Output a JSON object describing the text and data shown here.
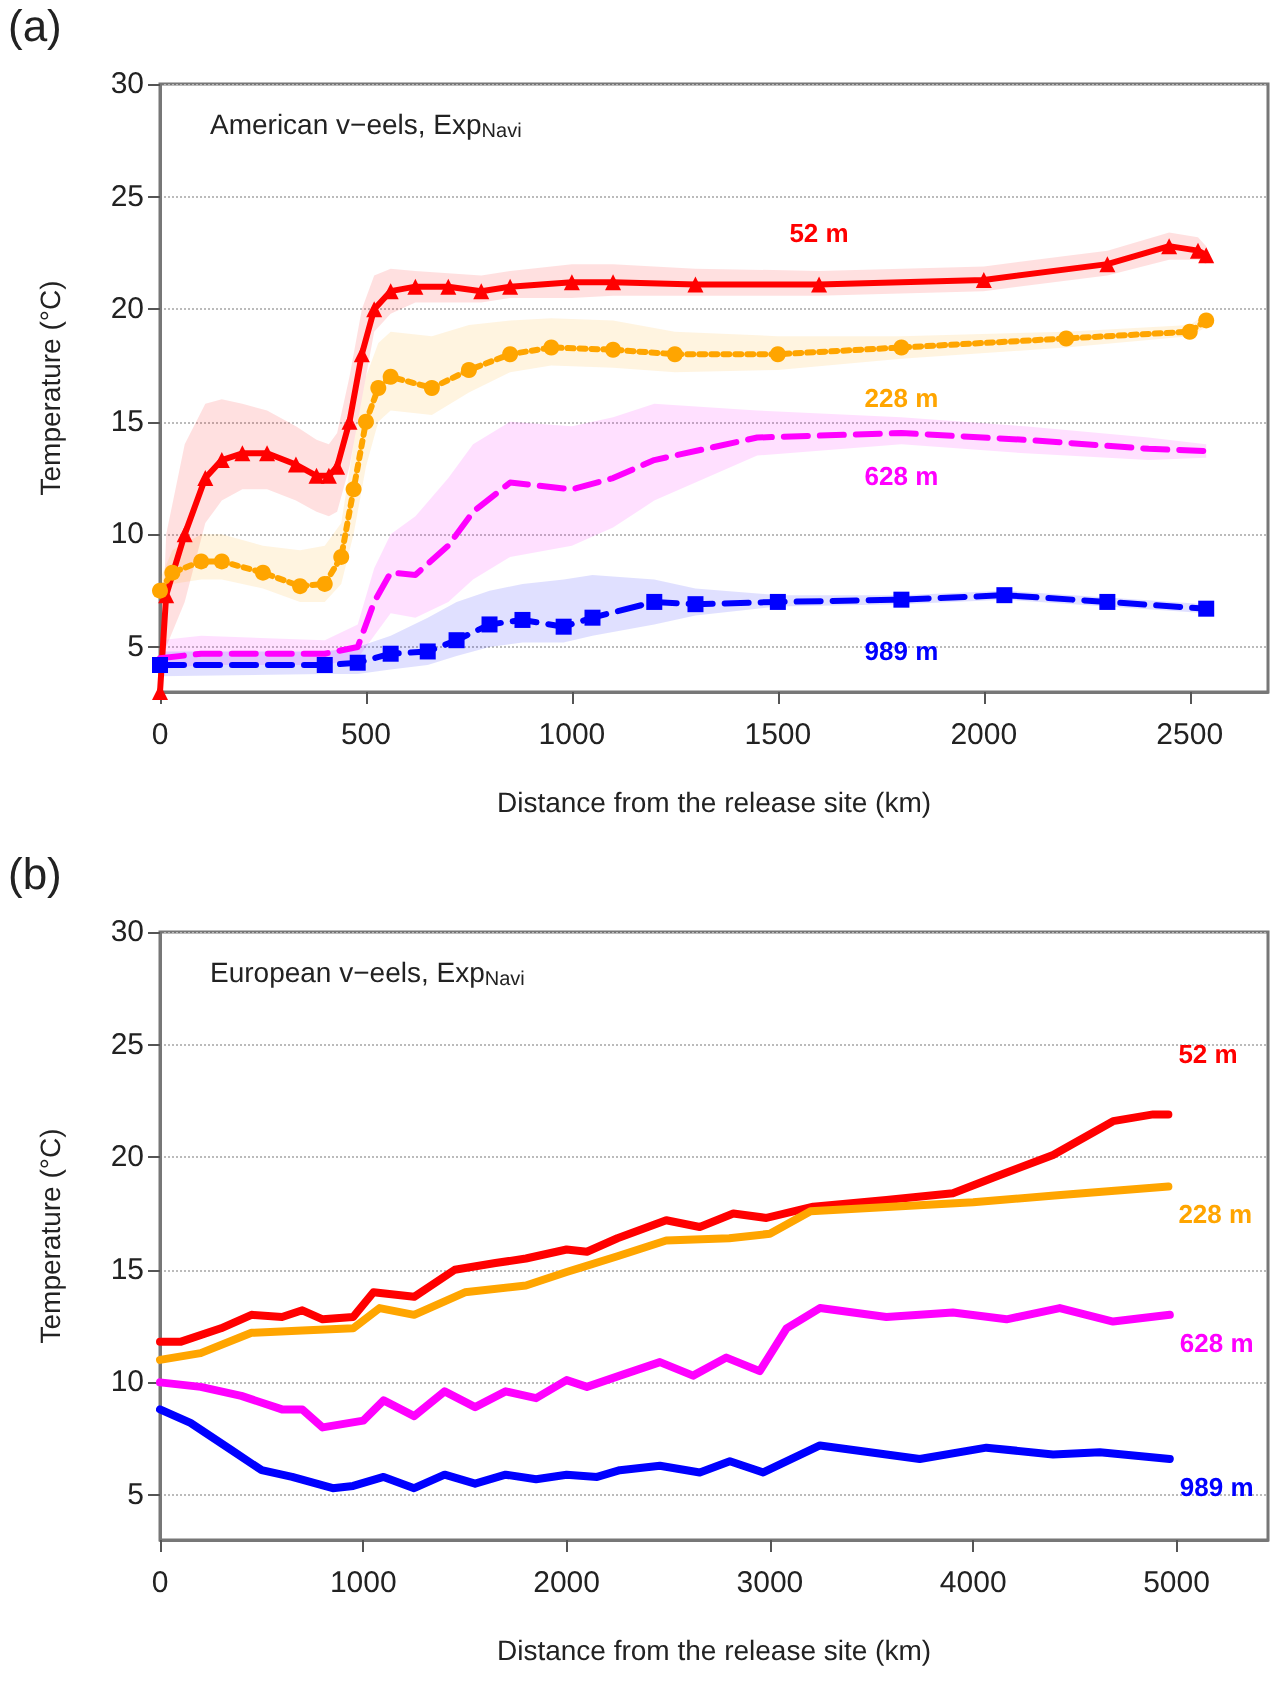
{
  "chart_data": [
    {
      "type": "line",
      "title": "American v−eels, Exp$_{Navi}$",
      "xlabel": "Distance from the release site (km)",
      "ylabel": "Temperature (°C)",
      "annotations": [
        "(a)"
      ],
      "xlim": [
        0,
        2690
      ],
      "xticks": [
        0,
        500,
        1000,
        1500,
        2000,
        2500
      ],
      "ylim": [
        3,
        30
      ],
      "yticks": [
        5,
        10,
        15,
        20,
        25,
        30
      ],
      "grid": "y",
      "legend": false,
      "series": [
        {
          "name": "52 m",
          "color": "#ff0000",
          "marker": "triangle",
          "line_style": "solid",
          "x": [
            0,
            15,
            60,
            110,
            150,
            200,
            260,
            330,
            380,
            410,
            430,
            460,
            490,
            520,
            560,
            620,
            700,
            780,
            850,
            1000,
            1100,
            1300,
            1600,
            2000,
            2300,
            2450,
            2520,
            2540
          ],
          "values": [
            3,
            7.3,
            10,
            12.5,
            13.3,
            13.6,
            13.6,
            13.1,
            12.6,
            12.6,
            13,
            15,
            18,
            20,
            20.8,
            21,
            21,
            20.8,
            21,
            21.2,
            21.2,
            21.1,
            21.1,
            21.3,
            22,
            22.8,
            22.6,
            22.4
          ],
          "lower": [
            3,
            5,
            7,
            10.5,
            11.5,
            12,
            12,
            11.5,
            11,
            10.8,
            11,
            13,
            16,
            19,
            19.8,
            20.3,
            20.3,
            20.3,
            20.5,
            20.5,
            20.6,
            20.6,
            20.6,
            20.8,
            21.5,
            22.2,
            22.2,
            22
          ],
          "upper": [
            3,
            10,
            14,
            15.8,
            16,
            15.8,
            15.5,
            14.8,
            14.2,
            14,
            14.5,
            17,
            20,
            21.5,
            21.8,
            21.7,
            21.6,
            21.5,
            21.7,
            22,
            22,
            21.8,
            21.7,
            21.9,
            22.6,
            23.4,
            23.2,
            22.8
          ]
        },
        {
          "name": "228 m",
          "color": "#ffa500",
          "marker": "circle",
          "line_style": "dotted",
          "x": [
            0,
            30,
            100,
            150,
            250,
            340,
            400,
            440,
            470,
            500,
            530,
            560,
            660,
            750,
            850,
            950,
            1100,
            1250,
            1500,
            1800,
            2200,
            2500,
            2540
          ],
          "values": [
            7.5,
            8.3,
            8.8,
            8.8,
            8.3,
            7.7,
            7.8,
            9,
            12,
            15,
            16.5,
            17,
            16.5,
            17.3,
            18,
            18.3,
            18.2,
            18,
            18,
            18.3,
            18.7,
            19,
            19.5
          ],
          "lower": [
            7,
            7.8,
            8,
            8,
            7.6,
            7,
            7,
            7.8,
            10,
            13,
            15,
            15.5,
            15.3,
            16.3,
            17.2,
            17.5,
            17.4,
            17.2,
            17.3,
            17.8,
            18.3,
            18.8,
            19.2
          ],
          "upper": [
            8,
            9.3,
            10,
            10,
            9.5,
            9.3,
            9.5,
            10.5,
            14,
            17,
            18.5,
            19,
            18.8,
            19.3,
            19.5,
            19.6,
            19.5,
            19,
            18.8,
            18.8,
            19,
            19.3,
            19.8
          ]
        },
        {
          "name": "628 m",
          "color": "#ff00ff",
          "marker": "none",
          "line_style": "dashed",
          "x": [
            0,
            100,
            400,
            480,
            520,
            560,
            620,
            700,
            760,
            850,
            1000,
            1100,
            1200,
            1450,
            1800,
            2100,
            2400,
            2540
          ],
          "values": [
            4.5,
            4.7,
            4.7,
            5,
            7,
            8.3,
            8.2,
            9.5,
            11,
            12.3,
            12,
            12.5,
            13.3,
            14.3,
            14.5,
            14.2,
            13.8,
            13.7
          ],
          "lower": [
            4,
            4.2,
            4.2,
            4.5,
            5.5,
            6.5,
            6.3,
            7,
            8,
            9,
            9.5,
            10.3,
            11.5,
            13.5,
            14,
            13.6,
            13.3,
            13.4
          ],
          "upper": [
            5.3,
            5.5,
            5.3,
            6,
            8.5,
            10,
            10.8,
            12.5,
            14,
            15,
            14.8,
            15.2,
            15.8,
            15.5,
            15.2,
            14.8,
            14.3,
            14
          ]
        },
        {
          "name": "989 m",
          "color": "#0000ff",
          "marker": "square",
          "line_style": "dashed",
          "x": [
            0,
            400,
            480,
            560,
            650,
            720,
            800,
            880,
            980,
            1050,
            1200,
            1300,
            1500,
            1800,
            2050,
            2300,
            2540
          ],
          "values": [
            4.2,
            4.2,
            4.3,
            4.7,
            4.8,
            5.3,
            6,
            6.2,
            5.9,
            6.3,
            7,
            6.9,
            7,
            7.1,
            7.3,
            7,
            6.7
          ],
          "lower": [
            3.7,
            3.8,
            3.8,
            4,
            4.2,
            4.6,
            5,
            5.2,
            5.2,
            5.5,
            6,
            6.4,
            6.8,
            6.9,
            7.1,
            6.8,
            6.5
          ],
          "upper": [
            4.8,
            4.8,
            5,
            5.5,
            6.3,
            7,
            7.5,
            7.8,
            8,
            8.2,
            8,
            7.6,
            7.3,
            7.3,
            7.5,
            7.2,
            6.9
          ]
        }
      ]
    },
    {
      "type": "line",
      "title": "European v−eels, Exp$_{Navi}$",
      "xlabel": "Distance from the release site (km)",
      "ylabel": "Temperature (°C)",
      "annotations": [
        "(b)"
      ],
      "xlim": [
        0,
        5450
      ],
      "xticks": [
        0,
        1000,
        2000,
        3000,
        4000,
        5000
      ],
      "ylim": [
        3,
        30
      ],
      "yticks": [
        5,
        10,
        15,
        20,
        25,
        30
      ],
      "grid": "y",
      "legend": false,
      "series": [
        {
          "name": "52 m",
          "color": "#ff0000",
          "marker": "none",
          "line_style": "solid",
          "x": [
            0,
            100,
            300,
            450,
            600,
            700,
            800,
            950,
            1050,
            1250,
            1450,
            1650,
            1800,
            2000,
            2100,
            2250,
            2490,
            2655,
            2820,
            2983,
            3213,
            3573,
            3900,
            4100,
            4393,
            4688,
            4885,
            4960
          ],
          "values": [
            11.8,
            11.8,
            12.4,
            13,
            12.9,
            13.2,
            12.8,
            12.9,
            14,
            13.8,
            15,
            15.3,
            15.5,
            15.9,
            15.8,
            16.4,
            17.2,
            16.9,
            17.5,
            17.3,
            17.8,
            18.1,
            18.4,
            19.1,
            20.1,
            21.6,
            21.9,
            21.9
          ]
        },
        {
          "name": "228 m",
          "color": "#ffa500",
          "marker": "none",
          "line_style": "solid",
          "x": [
            0,
            200,
            450,
            700,
            950,
            1080,
            1250,
            1500,
            1800,
            2000,
            2250,
            2490,
            2800,
            3000,
            3200,
            3600,
            4000,
            4400,
            4960
          ],
          "values": [
            11,
            11.3,
            12.2,
            12.3,
            12.4,
            13.3,
            13,
            14,
            14.3,
            14.9,
            15.6,
            16.3,
            16.4,
            16.6,
            17.6,
            17.8,
            18,
            18.3,
            18.7
          ]
        },
        {
          "name": "628 m",
          "color": "#ff00ff",
          "marker": "none",
          "line_style": "solid",
          "x": [
            0,
            200,
            400,
            600,
            700,
            800,
            1000,
            1100,
            1250,
            1400,
            1550,
            1700,
            1850,
            2000,
            2100,
            2262,
            2459,
            2622,
            2786,
            2950,
            3082,
            3246,
            3573,
            3900,
            4164,
            4426,
            4688,
            4967
          ],
          "values": [
            10,
            9.8,
            9.4,
            8.8,
            8.8,
            8,
            8.3,
            9.2,
            8.5,
            9.6,
            8.9,
            9.6,
            9.3,
            10.1,
            9.8,
            10.3,
            10.9,
            10.3,
            11.1,
            10.5,
            12.4,
            13.3,
            12.9,
            13.1,
            12.8,
            13.3,
            12.7,
            13
          ]
        },
        {
          "name": "989 m",
          "color": "#0000ff",
          "marker": "none",
          "line_style": "solid",
          "x": [
            0,
            150,
            350,
            500,
            650,
            850,
            950,
            1100,
            1250,
            1400,
            1550,
            1700,
            1850,
            2000,
            2150,
            2262,
            2459,
            2655,
            2803,
            2967,
            3246,
            3737,
            4065,
            4393,
            4623,
            4967
          ],
          "values": [
            8.8,
            8.2,
            7,
            6.1,
            5.8,
            5.3,
            5.4,
            5.8,
            5.3,
            5.9,
            5.5,
            5.9,
            5.7,
            5.9,
            5.8,
            6.1,
            6.3,
            6,
            6.5,
            6,
            7.2,
            6.6,
            7.1,
            6.8,
            6.9,
            6.6
          ]
        }
      ]
    }
  ]
}
